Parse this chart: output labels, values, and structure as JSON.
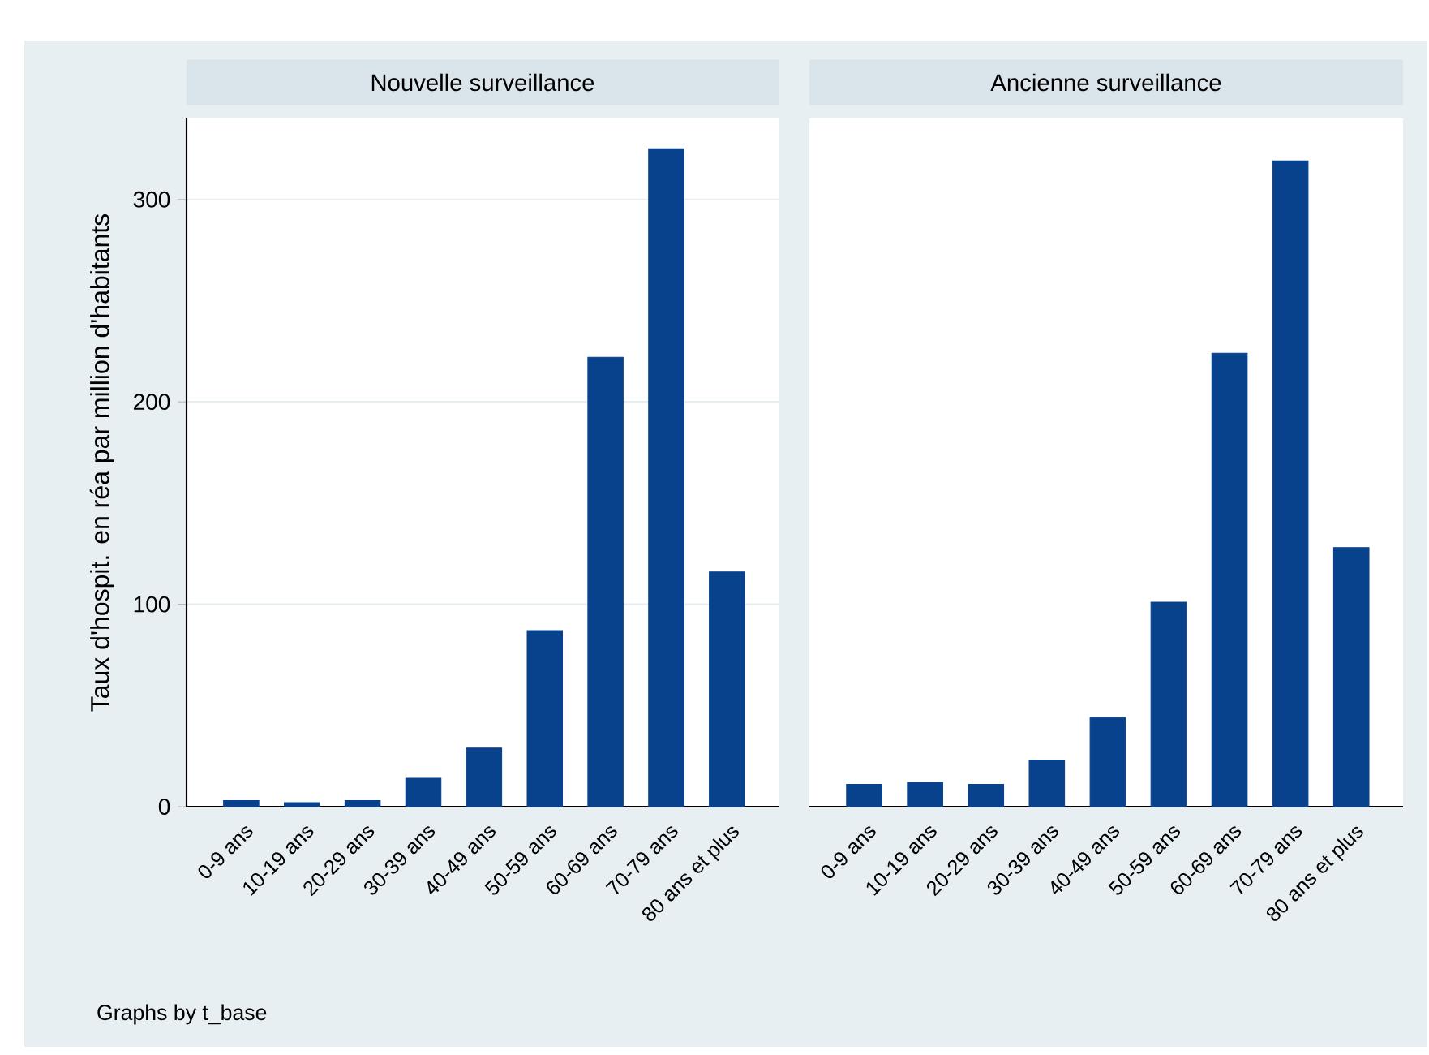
{
  "chart_data": [
    {
      "type": "bar",
      "title": "Nouvelle surveillance",
      "ylabel": "Taux d'hospit. en réa par million d'habitants",
      "categories": [
        "0-9 ans",
        "10-19 ans",
        "20-29 ans",
        "30-39 ans",
        "40-49 ans",
        "50-59 ans",
        "60-69 ans",
        "70-79 ans",
        "80 ans et plus"
      ],
      "values": [
        3,
        2,
        3,
        14,
        29,
        87,
        222,
        325,
        116
      ],
      "color": "#08428c",
      "ylim": [
        0,
        340
      ],
      "yticks": [
        0,
        100,
        200,
        300
      ],
      "grid": "y",
      "annotations": [
        "Graphs by t_base"
      ]
    },
    {
      "type": "bar",
      "title": "Ancienne surveillance",
      "categories": [
        "0-9 ans",
        "10-19 ans",
        "20-29 ans",
        "30-39 ans",
        "40-49 ans",
        "50-59 ans",
        "60-69 ans",
        "70-79 ans",
        "80 ans et plus"
      ],
      "values": [
        11,
        12,
        11,
        23,
        44,
        101,
        224,
        319,
        128
      ],
      "color": "#08428c",
      "ylim": [
        0,
        340
      ],
      "yticks": [
        0,
        100,
        200,
        300
      ],
      "grid": "y",
      "tick_labels": "x"
    }
  ]
}
